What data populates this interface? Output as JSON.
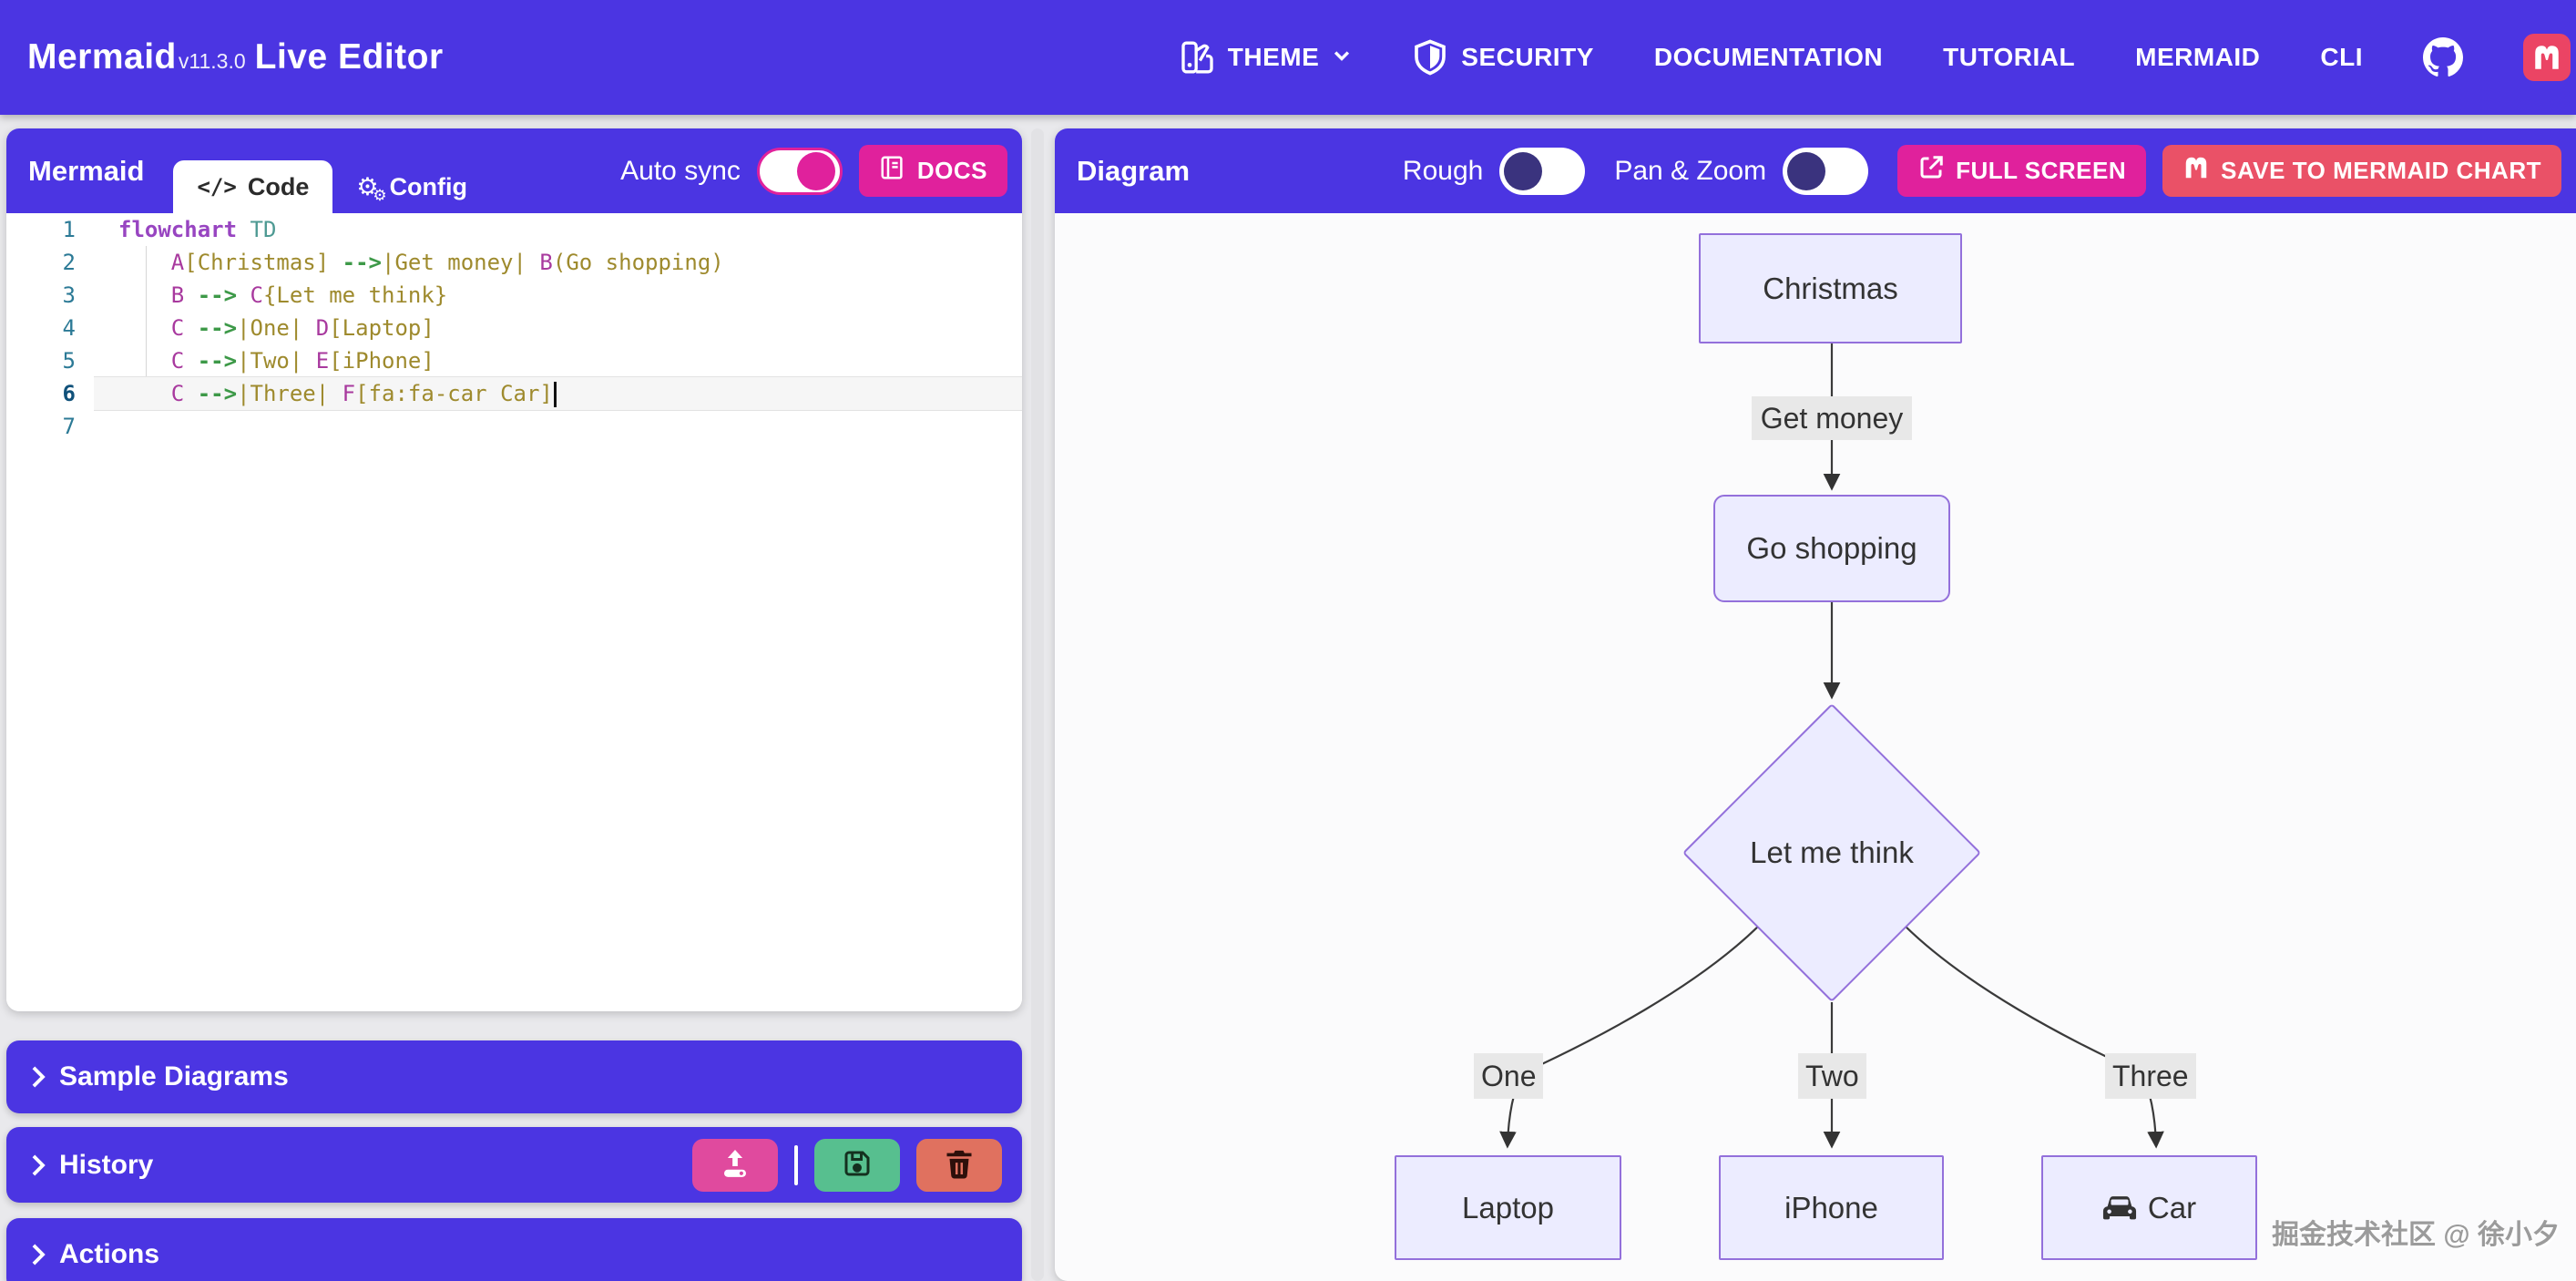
{
  "header": {
    "brand": {
      "name": "Mermaid",
      "version": "v11.3.0",
      "suffix": "Live Editor"
    },
    "nav": [
      {
        "id": "theme",
        "label": "THEME",
        "icon": "palette-icon",
        "chevron": true
      },
      {
        "id": "security",
        "label": "SECURITY",
        "icon": "shield-icon"
      },
      {
        "id": "documentation",
        "label": "DOCUMENTATION"
      },
      {
        "id": "tutorial",
        "label": "TUTORIAL"
      },
      {
        "id": "mermaid",
        "label": "MERMAID"
      },
      {
        "id": "cli",
        "label": "CLI"
      },
      {
        "id": "github",
        "label": "",
        "icon": "github-icon"
      },
      {
        "id": "mermaid-chart",
        "label": "",
        "icon": "mermaid-chart-icon"
      }
    ]
  },
  "editor_panel": {
    "title": "Mermaid",
    "tabs": [
      {
        "label": "Code",
        "icon": "code-icon",
        "active": true
      },
      {
        "label": "Config",
        "icon": "gear-icon",
        "active": false
      }
    ],
    "autosync_label": "Auto sync",
    "autosync_on": true,
    "docs_button": "DOCS",
    "code": {
      "current_line": 6,
      "line_numbers": [
        "1",
        "2",
        "3",
        "4",
        "5",
        "6",
        "7"
      ],
      "lines": [
        [
          [
            "k",
            "flowchart"
          ],
          [
            "p",
            " "
          ],
          [
            "t",
            "TD"
          ]
        ],
        [
          [
            "p",
            "    "
          ],
          [
            "i",
            "A"
          ],
          [
            "s",
            "[Christmas]"
          ],
          [
            "p",
            " "
          ],
          [
            "a",
            "-->"
          ],
          [
            "s",
            "|Get money|"
          ],
          [
            "p",
            " "
          ],
          [
            "i",
            "B"
          ],
          [
            "s",
            "(Go shopping)"
          ]
        ],
        [
          [
            "p",
            "    "
          ],
          [
            "i",
            "B"
          ],
          [
            "p",
            " "
          ],
          [
            "a",
            "-->"
          ],
          [
            "p",
            " "
          ],
          [
            "i",
            "C"
          ],
          [
            "s",
            "{Let me think}"
          ]
        ],
        [
          [
            "p",
            "    "
          ],
          [
            "i",
            "C"
          ],
          [
            "p",
            " "
          ],
          [
            "a",
            "-->"
          ],
          [
            "s",
            "|One|"
          ],
          [
            "p",
            " "
          ],
          [
            "i",
            "D"
          ],
          [
            "s",
            "[Laptop]"
          ]
        ],
        [
          [
            "p",
            "    "
          ],
          [
            "i",
            "C"
          ],
          [
            "p",
            " "
          ],
          [
            "a",
            "-->"
          ],
          [
            "s",
            "|Two|"
          ],
          [
            "p",
            " "
          ],
          [
            "i",
            "E"
          ],
          [
            "s",
            "[iPhone]"
          ]
        ],
        [
          [
            "p",
            "    "
          ],
          [
            "i",
            "C"
          ],
          [
            "p",
            " "
          ],
          [
            "a",
            "-->"
          ],
          [
            "s",
            "|Three|"
          ],
          [
            "p",
            " "
          ],
          [
            "i",
            "F"
          ],
          [
            "s",
            "[fa:fa-car Car]"
          ]
        ],
        []
      ]
    },
    "sections": [
      {
        "label": "Sample Diagrams"
      },
      {
        "label": "History",
        "buttons": [
          "upload",
          "save",
          "delete"
        ]
      },
      {
        "label": "Actions"
      }
    ]
  },
  "diagram_panel": {
    "title": "Diagram",
    "rough_label": "Rough",
    "rough_on": false,
    "panzoom_label": "Pan & Zoom",
    "panzoom_on": false,
    "fullscreen_button": "FULL SCREEN",
    "save_button": "SAVE TO MERMAID CHART",
    "flowchart": {
      "nodes": {
        "A": "Christmas",
        "B": "Go shopping",
        "C": "Let me think",
        "D": "Laptop",
        "E": "iPhone",
        "F": "Car"
      },
      "edge_labels": {
        "AB": "Get money",
        "CD": "One",
        "CE": "Two",
        "CF": "Three"
      }
    },
    "watermark": "掘金技术社区 @ 徐小夕"
  },
  "colors": {
    "primary_purple": "#4b35e2",
    "pink": "#e0219c",
    "rose": "#ea5167",
    "green": "#57bf8f",
    "salmon": "#e0715f",
    "node_fill": "#ececff",
    "node_border": "#9370db",
    "edge_label_bg": "#e8e8e8",
    "edge_stroke": "#3a3a3a"
  }
}
